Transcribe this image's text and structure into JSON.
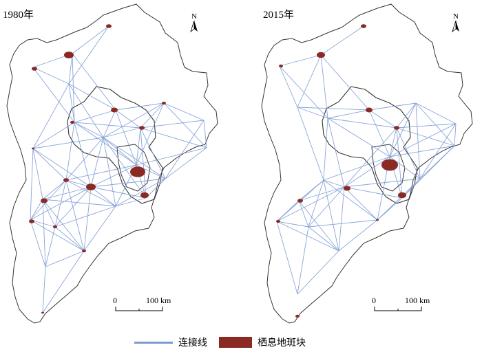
{
  "panels": [
    {
      "year_label": "1980年",
      "scale_zero": "0",
      "scale_dist": "100 km",
      "north": "N"
    },
    {
      "year_label": "2015年",
      "scale_zero": "0",
      "scale_dist": "100 km",
      "north": "N"
    }
  ],
  "legend": {
    "line_label": "连接线",
    "patch_label": "栖息地斑块"
  },
  "colors": {
    "connection_line": "#7d9bd4",
    "habitat_patch": "#8b2a22",
    "boundary": "#333333",
    "background": "#ffffff"
  }
}
